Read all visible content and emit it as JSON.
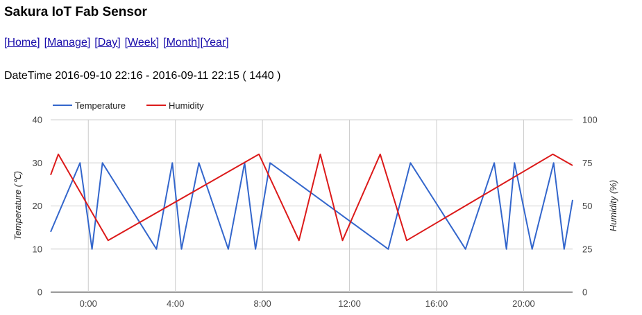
{
  "page": {
    "title": "Sakura IoT Fab Sensor",
    "nav": {
      "home": "[Home]",
      "manage": "[Manage]",
      "day": "[Day]",
      "week": "[Week]",
      "month": "[Month]",
      "year": "[Year]"
    },
    "datetime": "DateTime 2016-09-10 22:16 - 2016-09-11 22:15 ( 1440 )"
  },
  "chart_data": {
    "type": "line",
    "x_unit": "hours",
    "x_tick_labels": [
      "0:00",
      "4:00",
      "8:00",
      "12:00",
      "16:00",
      "20:00"
    ],
    "x_tick_values": [
      0,
      4,
      8,
      12,
      16,
      20
    ],
    "xlim": [
      -1.73,
      22.25
    ],
    "ylabel_left": "Temperature (℃)",
    "ylabel_right": "Humidity (%)",
    "ylim_left": [
      0,
      40
    ],
    "ylim_right": [
      0,
      100
    ],
    "yticks_left": [
      "0",
      "10",
      "20",
      "30",
      "40"
    ],
    "yticks_right": [
      "0",
      "25",
      "50",
      "75",
      "100"
    ],
    "grid": true,
    "legend_position": "top-left",
    "series": [
      {
        "name": "Temperature",
        "color": "#3366cc",
        "axis": "left",
        "x": [
          -1.73,
          -0.38,
          0.17,
          0.65,
          3.13,
          3.86,
          4.28,
          5.08,
          6.43,
          7.18,
          7.68,
          8.35,
          13.78,
          14.8,
          17.33,
          18.65,
          19.21,
          19.58,
          20.39,
          21.38,
          21.86,
          22.25
        ],
        "y": [
          14,
          30,
          10,
          30,
          10,
          30,
          10,
          30,
          10,
          30,
          10,
          30,
          10,
          30,
          10,
          30,
          10,
          30,
          10,
          30,
          10,
          21.4
        ]
      },
      {
        "name": "Humidity",
        "color": "#dc1a1a",
        "axis": "right",
        "x": [
          -1.73,
          -1.38,
          0.91,
          7.84,
          9.68,
          10.66,
          11.68,
          13.41,
          14.63,
          21.34,
          22.25
        ],
        "y": [
          68,
          80,
          30,
          80,
          30,
          80,
          30,
          80,
          30,
          80,
          73.5
        ]
      }
    ]
  }
}
